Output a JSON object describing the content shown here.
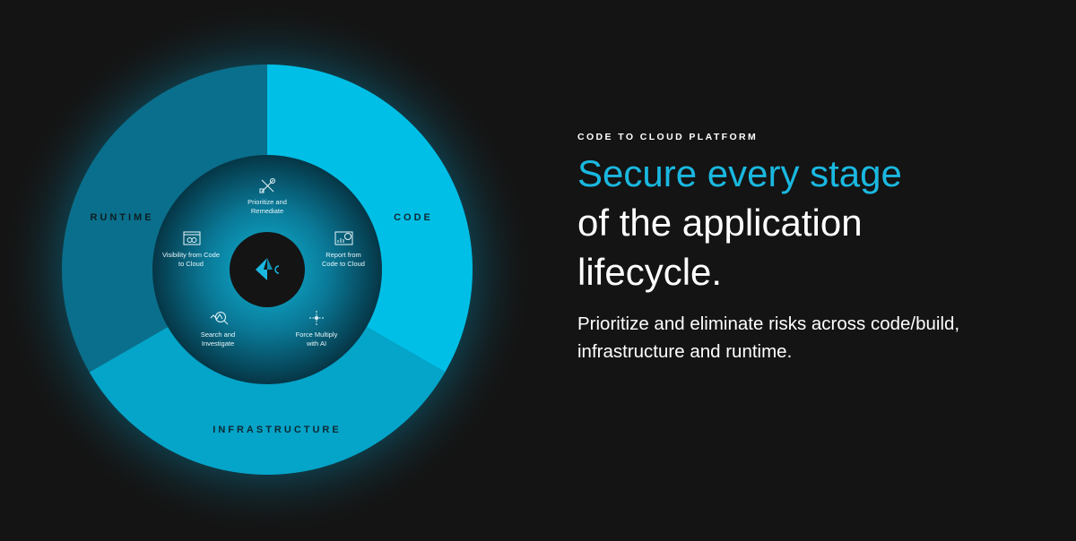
{
  "diagram": {
    "segments": [
      {
        "label": "CODE",
        "color": "#00bfe6"
      },
      {
        "label": "INFRASTRUCTURE",
        "color": "#05a4c9"
      },
      {
        "label": "RUNTIME",
        "color": "#0a6f8c"
      }
    ],
    "capabilities": [
      {
        "label_lines": [
          "Prioritize and",
          "Remediate"
        ],
        "icon": "tools-icon"
      },
      {
        "label_lines": [
          "Report from",
          "Code to Cloud"
        ],
        "icon": "report-chart-icon"
      },
      {
        "label_lines": [
          "Force Multiply",
          "with AI"
        ],
        "icon": "sparkle-ai-icon"
      },
      {
        "label_lines": [
          "Search and",
          "Investigate"
        ],
        "icon": "search-investigate-icon"
      },
      {
        "label_lines": [
          "Visibility from Code",
          "to Cloud"
        ],
        "icon": "infinity-window-icon"
      }
    ],
    "center_logo": "logo-icon",
    "accent": "#1ab8e0"
  },
  "content": {
    "eyebrow": "CODE TO CLOUD PLATFORM",
    "headline_accent": "Secure every stage",
    "headline_line2": "of the application",
    "headline_line3": "lifecycle.",
    "body": "Prioritize and eliminate risks across code/build, infrastructure and runtime."
  }
}
